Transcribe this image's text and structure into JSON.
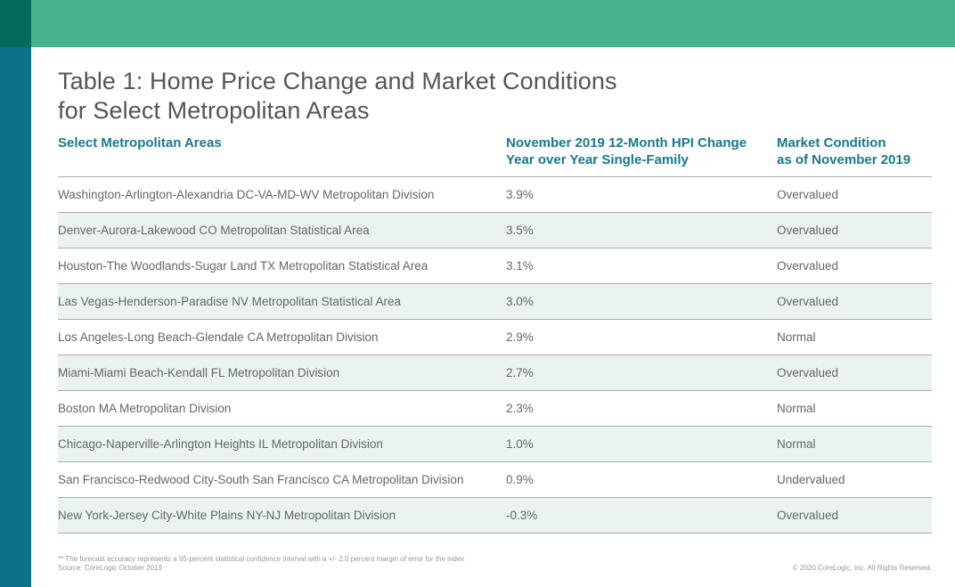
{
  "page": {
    "title_line1": "Table 1: Home Price Change and Market Conditions",
    "title_line2": "for Select Metropolitan Areas"
  },
  "table": {
    "header": {
      "col1": "Select Metropolitan Areas",
      "col2_line1": "November 2019 12-Month HPI Change",
      "col2_line2": "Year over Year Single-Family",
      "col3_line1": "Market Condition",
      "col3_line2": "as of November 2019"
    },
    "rows": [
      {
        "area": "Washington-Arlington-Alexandria DC-VA-MD-WV Metropolitan Division",
        "hpi_change": "3.9%",
        "condition": "Overvalued"
      },
      {
        "area": "Denver-Aurora-Lakewood CO Metropolitan Statistical Area",
        "hpi_change": "3.5%",
        "condition": "Overvalued"
      },
      {
        "area": "Houston-The Woodlands-Sugar Land TX Metropolitan Statistical Area",
        "hpi_change": "3.1%",
        "condition": "Overvalued"
      },
      {
        "area": "Las Vegas-Henderson-Paradise NV Metropolitan Statistical Area",
        "hpi_change": "3.0%",
        "condition": "Overvalued"
      },
      {
        "area": "Los Angeles-Long Beach-Glendale CA Metropolitan Division",
        "hpi_change": "2.9%",
        "condition": "Normal"
      },
      {
        "area": "Miami-Miami Beach-Kendall FL Metropolitan Division",
        "hpi_change": "2.7%",
        "condition": "Overvalued"
      },
      {
        "area": "Boston MA Metropolitan Division",
        "hpi_change": "2.3%",
        "condition": "Normal"
      },
      {
        "area": "Chicago-Naperville-Arlington Heights IL Metropolitan Division",
        "hpi_change": "1.0%",
        "condition": "Normal"
      },
      {
        "area": "San Francisco-Redwood City-South San Francisco CA Metropolitan Division",
        "hpi_change": "0.9%",
        "condition": "Undervalued"
      },
      {
        "area": "New York-Jersey City-White Plains NY-NJ Metropolitan Division",
        "hpi_change": "-0.3%",
        "condition": "Overvalued"
      }
    ]
  },
  "footer": {
    "note": "** The forecast accuracy represents a 95-percent statistical confidence interval with a +/- 2.0 percent margin of error for the index",
    "source": "Source: CoreLogic October 2019",
    "copyright": "© 2020 CoreLogic, Inc. All Rights Reserved."
  },
  "colors": {
    "top_band": "#49b18c",
    "corner_square": "#05695a",
    "left_strip": "#0c7086",
    "header_text": "#17798d",
    "alt_row_bg": "#ebf3f0",
    "divider": "#a9abae",
    "title_text": "#545559",
    "body_text": "#646669"
  },
  "chart_data": {
    "type": "table",
    "title": "Table 1: Home Price Change and Market Conditions for Select Metropolitan Areas",
    "columns": [
      "Select Metropolitan Areas",
      "November 2019 12-Month HPI Change Year over Year Single-Family",
      "Market Condition as of November 2019"
    ],
    "rows": [
      [
        "Washington-Arlington-Alexandria DC-VA-MD-WV Metropolitan Division",
        "3.9%",
        "Overvalued"
      ],
      [
        "Denver-Aurora-Lakewood CO Metropolitan Statistical Area",
        "3.5%",
        "Overvalued"
      ],
      [
        "Houston-The Woodlands-Sugar Land TX Metropolitan Statistical Area",
        "3.1%",
        "Overvalued"
      ],
      [
        "Las Vegas-Henderson-Paradise NV Metropolitan Statistical Area",
        "3.0%",
        "Overvalued"
      ],
      [
        "Los Angeles-Long Beach-Glendale CA Metropolitan Division",
        "2.9%",
        "Normal"
      ],
      [
        "Miami-Miami Beach-Kendall FL Metropolitan Division",
        "2.7%",
        "Overvalued"
      ],
      [
        "Boston MA Metropolitan Division",
        "2.3%",
        "Normal"
      ],
      [
        "Chicago-Naperville-Arlington Heights IL Metropolitan Division",
        "1.0%",
        "Normal"
      ],
      [
        "San Francisco-Redwood City-South San Francisco CA Metropolitan Division",
        "0.9%",
        "Undervalued"
      ],
      [
        "New York-Jersey City-White Plains NY-NJ Metropolitan Division",
        "-0.3%",
        "Overvalued"
      ]
    ],
    "hpi_change_values": [
      3.9,
      3.5,
      3.1,
      3.0,
      2.9,
      2.7,
      2.3,
      1.0,
      0.9,
      -0.3
    ]
  }
}
